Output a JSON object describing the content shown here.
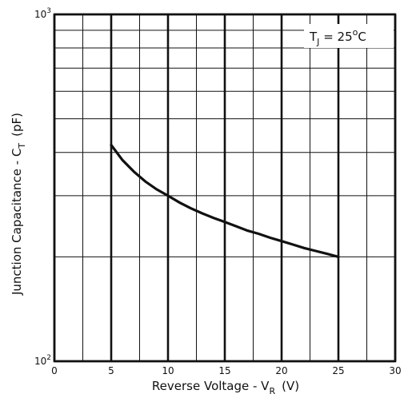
{
  "chart_data": {
    "type": "line",
    "xlabel": "Reverse Voltage - V",
    "xlabel_sub": "R",
    "xlabel_unit": "(V)",
    "ylabel": "Junction Capacitance - C",
    "ylabel_sub": "T",
    "ylabel_unit": "(pF)",
    "xlim": [
      0,
      30
    ],
    "ylim": [
      100,
      1000
    ],
    "y_scale": "log",
    "grid": true,
    "x_ticks": [
      "0",
      "5",
      "10",
      "15",
      "20",
      "25",
      "30"
    ],
    "x_tick_values": [
      0,
      5,
      10,
      15,
      20,
      25,
      30
    ],
    "y_tick_values": [
      100,
      1000
    ],
    "y_ticks": [
      {
        "base": "10",
        "exp": "2"
      },
      {
        "base": "10",
        "exp": "3"
      }
    ],
    "annotation": {
      "text": "T",
      "sub": "J",
      "value": " = 25",
      "deg": "o",
      "unit": "C"
    },
    "series": [
      {
        "x": [
          5,
          6,
          7,
          8,
          9,
          10,
          11,
          12,
          13,
          14,
          15,
          16,
          17,
          18,
          19,
          20,
          21,
          22,
          23,
          24,
          25
        ],
        "y": [
          420,
          380,
          352,
          330,
          313,
          300,
          287,
          276,
          267,
          259,
          252,
          245,
          238,
          233,
          227,
          222,
          217,
          212,
          208,
          204,
          200
        ]
      }
    ]
  }
}
